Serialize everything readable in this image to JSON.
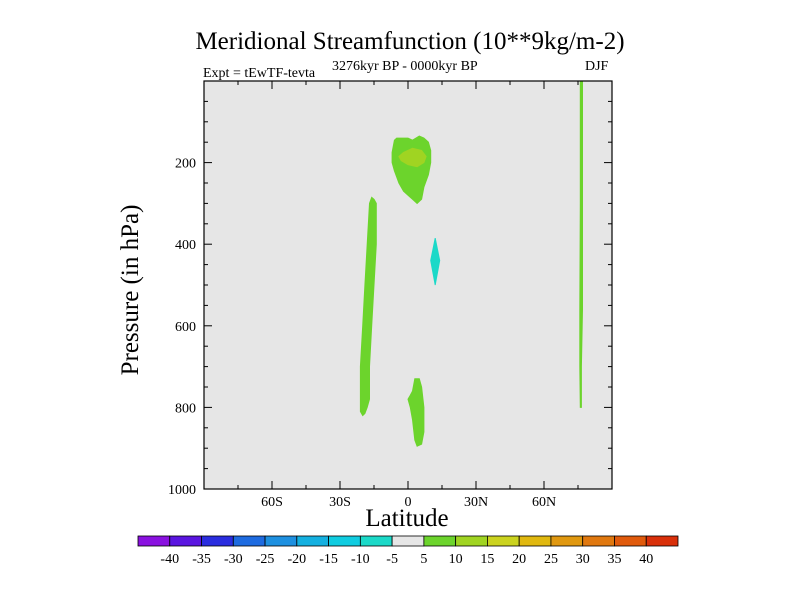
{
  "chart_data": {
    "type": "contour",
    "title": "Meridional Streamfunction (10**9kg/m-2)",
    "left_label": "Expt = tEwTF-tevta",
    "center_label": "3276kyr BP - 0000kyr BP",
    "right_label": "DJF",
    "xlabel": "Latitude",
    "ylabel": "Pressure (in hPa)",
    "xlim": [
      -90,
      90
    ],
    "ylim": [
      1000,
      0
    ],
    "x_ticks": [
      {
        "value": -60,
        "label": "60S"
      },
      {
        "value": -30,
        "label": "30S"
      },
      {
        "value": 0,
        "label": "0"
      },
      {
        "value": 30,
        "label": "30N"
      },
      {
        "value": 60,
        "label": "60N"
      }
    ],
    "y_ticks": [
      {
        "value": 200,
        "label": "200"
      },
      {
        "value": 400,
        "label": "400"
      },
      {
        "value": 600,
        "label": "600"
      },
      {
        "value": 800,
        "label": "800"
      },
      {
        "value": 1000,
        "label": "1000"
      }
    ],
    "background_color": "#e6e6e6",
    "contour_regions": [
      {
        "name": "sh-subtropical-cell",
        "level": "5-10",
        "color": "#6cd42c",
        "points": [
          [
            -15,
            290
          ],
          [
            -14,
            300
          ],
          [
            -14,
            400
          ],
          [
            -15,
            500
          ],
          [
            -16,
            600
          ],
          [
            -17,
            700
          ],
          [
            -17,
            780
          ],
          [
            -18,
            800
          ],
          [
            -19,
            815
          ],
          [
            -20,
            820
          ],
          [
            -21,
            810
          ],
          [
            -21,
            790
          ],
          [
            -21,
            700
          ],
          [
            -20,
            600
          ],
          [
            -19,
            500
          ],
          [
            -18,
            400
          ],
          [
            -17,
            300
          ],
          [
            -16,
            285
          ]
        ]
      },
      {
        "name": "equatorial-upper-cell",
        "level": "5-10",
        "color": "#6cd42c",
        "points": [
          [
            -6,
            145
          ],
          [
            -5,
            140
          ],
          [
            0,
            140
          ],
          [
            2,
            145
          ],
          [
            5,
            135
          ],
          [
            7,
            140
          ],
          [
            9,
            150
          ],
          [
            10,
            170
          ],
          [
            10,
            200
          ],
          [
            9,
            230
          ],
          [
            7,
            260
          ],
          [
            6,
            290
          ],
          [
            4,
            300
          ],
          [
            2,
            290
          ],
          [
            0,
            280
          ],
          [
            -2,
            270
          ],
          [
            -4,
            250
          ],
          [
            -6,
            220
          ],
          [
            -7,
            200
          ],
          [
            -7,
            175
          ]
        ]
      },
      {
        "name": "equatorial-upper-core",
        "level": "10-15",
        "color": "#a0d422",
        "points": [
          [
            -2,
            175
          ],
          [
            2,
            165
          ],
          [
            6,
            170
          ],
          [
            8,
            185
          ],
          [
            7,
            200
          ],
          [
            4,
            210
          ],
          [
            0,
            205
          ],
          [
            -3,
            195
          ],
          [
            -4,
            185
          ]
        ]
      },
      {
        "name": "equatorial-lower-cell",
        "level": "5-10",
        "color": "#6cd42c",
        "points": [
          [
            3,
            730
          ],
          [
            5,
            730
          ],
          [
            6,
            750
          ],
          [
            7,
            800
          ],
          [
            7,
            860
          ],
          [
            6,
            890
          ],
          [
            4,
            895
          ],
          [
            3,
            880
          ],
          [
            2,
            830
          ],
          [
            1,
            800
          ],
          [
            0,
            780
          ],
          [
            1,
            770
          ],
          [
            2,
            760
          ]
        ]
      },
      {
        "name": "nh-negative-cell",
        "level": "-10 to -5",
        "color": "#1bd9c8",
        "points": [
          [
            12,
            385
          ],
          [
            14,
            440
          ],
          [
            12,
            500
          ],
          [
            10,
            440
          ]
        ]
      },
      {
        "name": "nh-high-lat-band",
        "level": "5-10",
        "color": "#6cd42c",
        "points": [
          [
            76,
            0
          ],
          [
            77,
            0
          ],
          [
            77,
            300
          ],
          [
            77,
            560
          ],
          [
            76.5,
            700
          ],
          [
            76.5,
            800
          ],
          [
            76,
            800
          ],
          [
            75.8,
            700
          ],
          [
            75.8,
            560
          ],
          [
            76,
            300
          ]
        ]
      }
    ],
    "colorbar": {
      "labels": [
        "-40",
        "-35",
        "-30",
        "-25",
        "-20",
        "-15",
        "-10",
        "-5",
        "5",
        "10",
        "15",
        "20",
        "25",
        "30",
        "35",
        "40"
      ],
      "colors": [
        "#8a11e0",
        "#5a15e0",
        "#2a2ddf",
        "#1e6be0",
        "#1e90e0",
        "#14b0e0",
        "#10cce0",
        "#1bd9c8",
        "#e6e6e6",
        "#6cd42c",
        "#a0d422",
        "#cbd31f",
        "#e0b80f",
        "#e09810",
        "#e0780f",
        "#e05a0c",
        "#d9300a"
      ]
    }
  }
}
